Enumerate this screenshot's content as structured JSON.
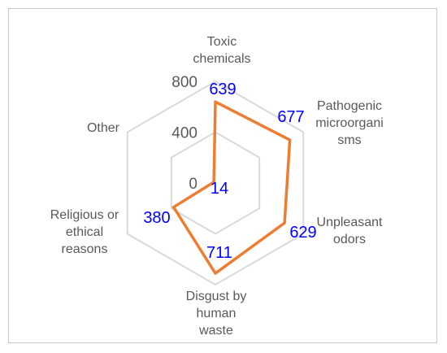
{
  "chart_data": {
    "type": "radar",
    "categories": [
      [
        "Toxic",
        "chemicals"
      ],
      [
        "Pathogenic",
        "microorgani",
        "sms"
      ],
      [
        "Unpleasant",
        "odors"
      ],
      [
        "Disgust by",
        "human",
        "waste"
      ],
      [
        "Religious or",
        "ethical",
        "reasons"
      ],
      [
        "Other"
      ]
    ],
    "values": [
      639,
      677,
      629,
      711,
      380,
      14
    ],
    "rlim": [
      0,
      800
    ],
    "ticks": [
      0,
      400,
      800
    ],
    "grid": true,
    "legend": "none",
    "colors": {
      "series": "#ed7d31",
      "grid": "#d9d9d9",
      "data_label": "#0000ff",
      "text": "#595959"
    }
  }
}
